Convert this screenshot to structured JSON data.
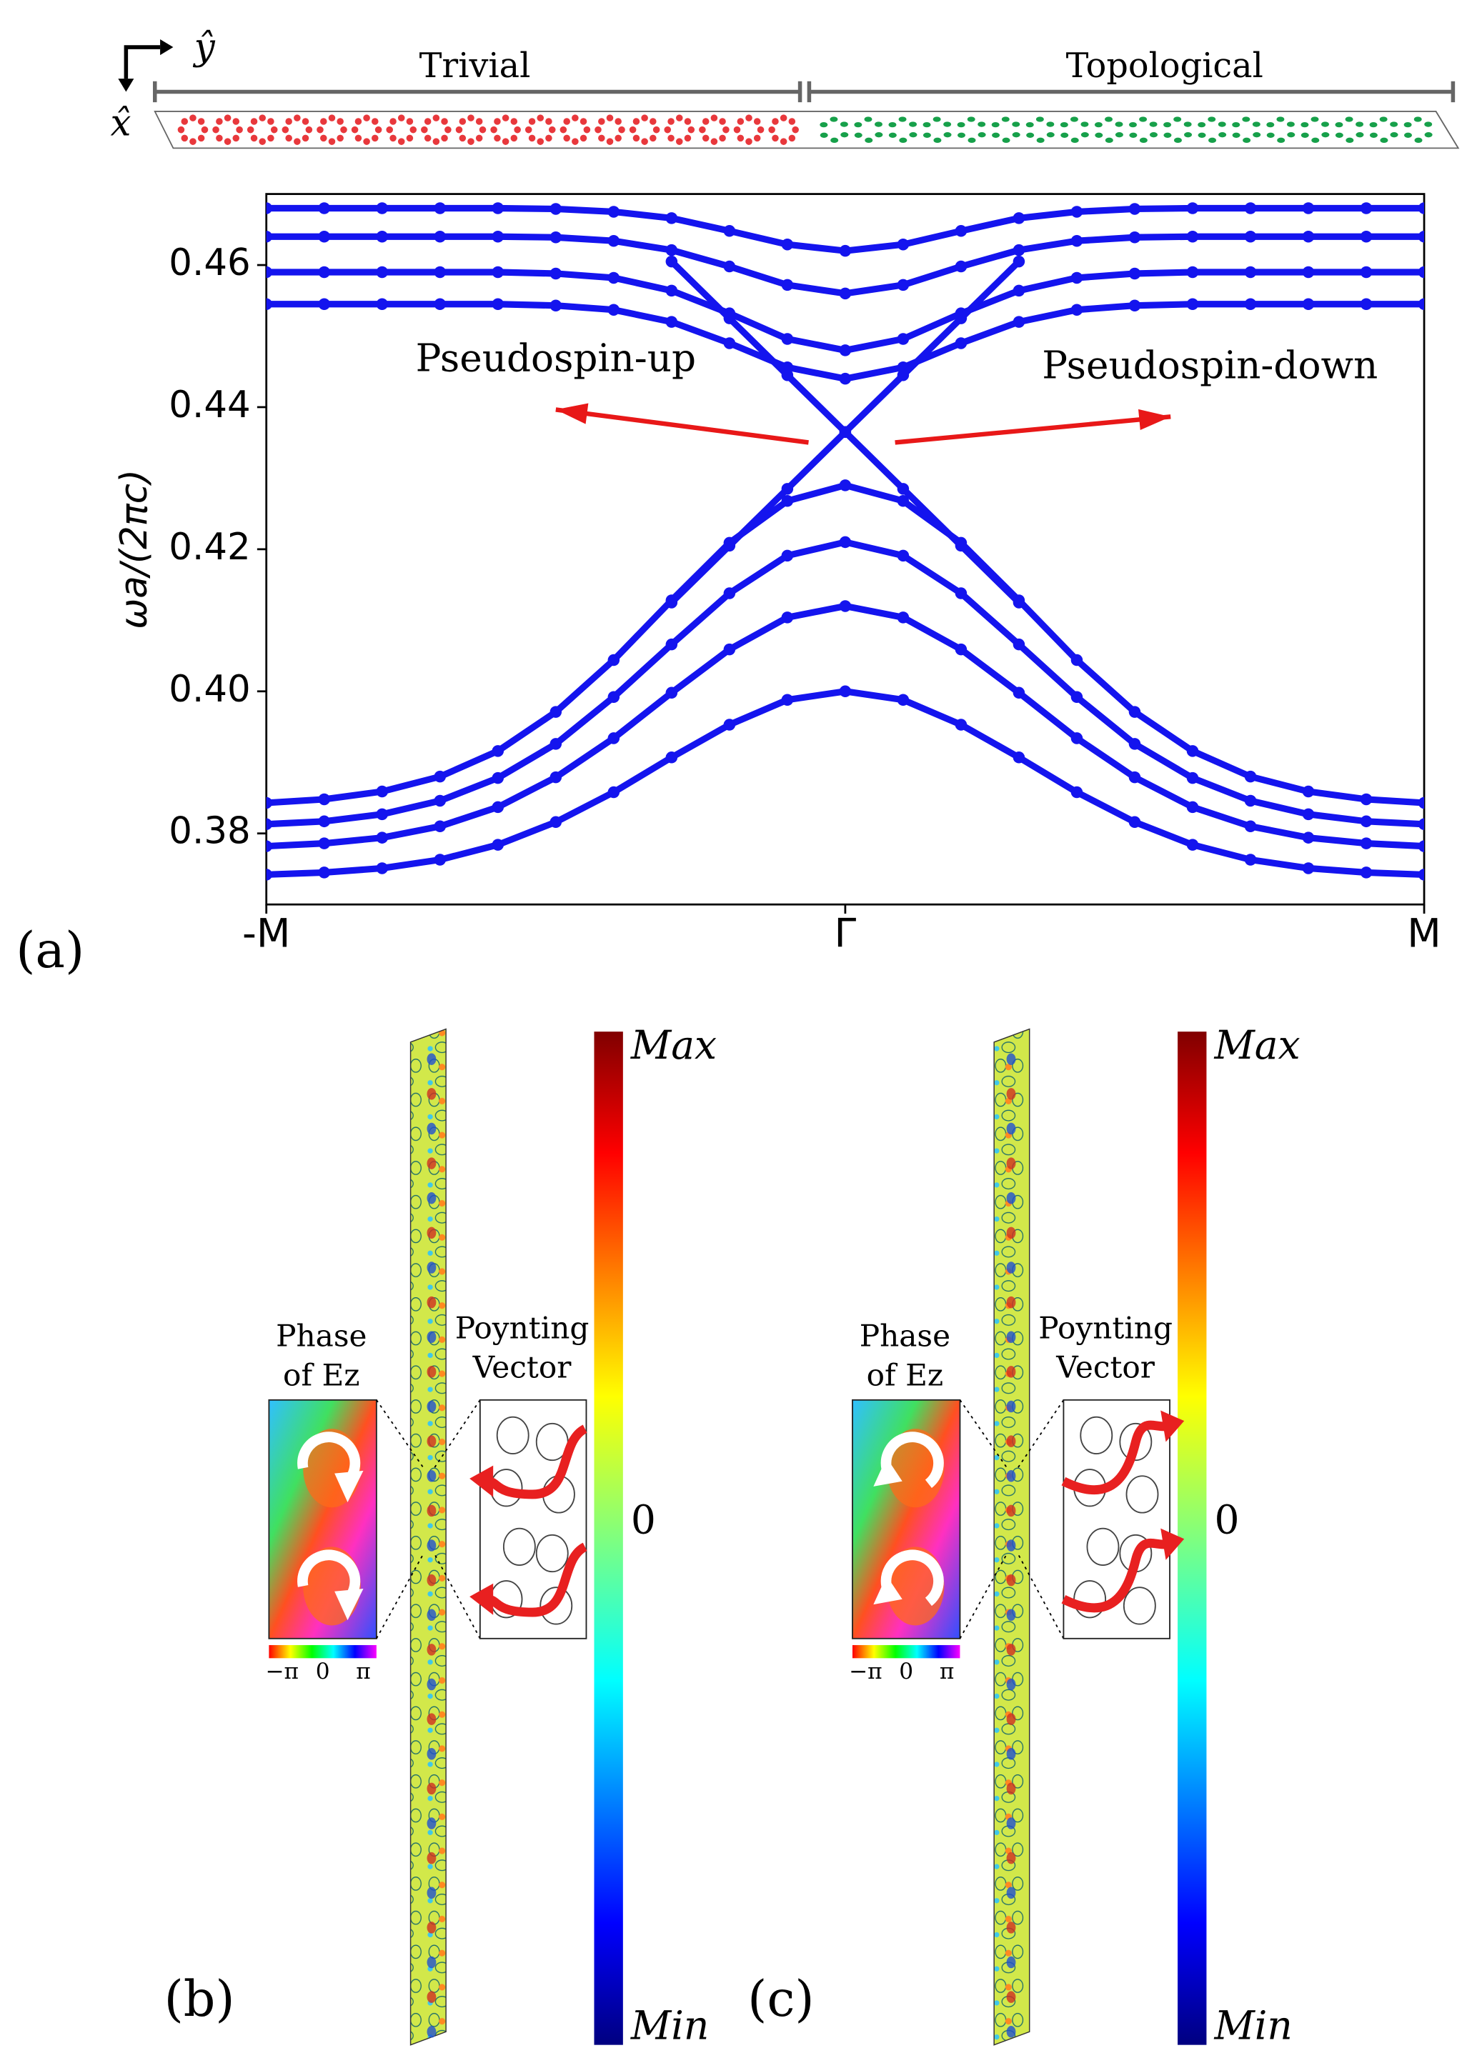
{
  "chart_data": {
    "type": "scatter",
    "ylabel": "ωa/(2πc)",
    "xlim": [
      -1,
      1
    ],
    "xticks": [
      {
        "value": -1,
        "label": "-M"
      },
      {
        "value": 0,
        "label": "Γ"
      },
      {
        "value": 1,
        "label": "M"
      }
    ],
    "ylim": [
      0.37,
      0.47
    ],
    "yticks": [
      0.38,
      {
        "value": 0.4,
        "label": "0.40"
      },
      0.42,
      0.44,
      0.46
    ],
    "color": "#1414ee",
    "annotations": [
      {
        "text": "Pseudospin-up",
        "x": -0.5,
        "y": 0.4415
      },
      {
        "text": "Pseudospin-down",
        "x": 0.63,
        "y": 0.4405
      }
    ],
    "panel_label": "(a)",
    "series": [
      {
        "x": [
          -1,
          -0.9,
          -0.8,
          -0.7,
          -0.6,
          -0.5,
          -0.4,
          -0.3,
          -0.2,
          -0.1,
          0,
          0.1,
          0.2,
          0.3,
          0.4,
          0.5,
          0.6,
          0.7,
          0.8,
          0.9,
          1
        ],
        "values": [
          0.3843,
          0.3848,
          0.3859,
          0.388,
          0.3916,
          0.3971,
          0.4044,
          0.4128,
          0.4209,
          0.4268,
          0.429,
          0.4268,
          0.4209,
          0.4128,
          0.4044,
          0.3971,
          0.3916,
          0.388,
          0.3859,
          0.3848,
          0.3843
        ]
      },
      {
        "x": [
          -1,
          -0.9,
          -0.8,
          -0.7,
          -0.6,
          -0.5,
          -0.4,
          -0.3,
          -0.2,
          -0.1,
          0,
          0.1,
          0.2,
          0.3,
          0.4,
          0.5,
          0.6,
          0.7,
          0.8,
          0.9,
          1
        ],
        "values": [
          0.3813,
          0.3817,
          0.3827,
          0.3846,
          0.3878,
          0.3926,
          0.3992,
          0.4066,
          0.4138,
          0.4191,
          0.421,
          0.4191,
          0.4138,
          0.4066,
          0.3992,
          0.3926,
          0.3878,
          0.3846,
          0.3827,
          0.3817,
          0.3813
        ]
      },
      {
        "x": [
          -1,
          -0.9,
          -0.8,
          -0.7,
          -0.6,
          -0.5,
          -0.4,
          -0.3,
          -0.2,
          -0.1,
          0,
          0.1,
          0.2,
          0.3,
          0.4,
          0.5,
          0.6,
          0.7,
          0.8,
          0.9,
          1
        ],
        "values": [
          0.3782,
          0.3786,
          0.3794,
          0.381,
          0.3837,
          0.3879,
          0.3934,
          0.3998,
          0.4059,
          0.4104,
          0.412,
          0.4104,
          0.4059,
          0.3998,
          0.3934,
          0.3879,
          0.3837,
          0.381,
          0.3794,
          0.3786,
          0.3782
        ]
      },
      {
        "x": [
          -1,
          -0.9,
          -0.8,
          -0.7,
          -0.6,
          -0.5,
          -0.4,
          -0.3,
          -0.2,
          -0.1,
          0,
          0.1,
          0.2,
          0.3,
          0.4,
          0.5,
          0.6,
          0.7,
          0.8,
          0.9,
          1
        ],
        "values": [
          0.3742,
          0.3745,
          0.3751,
          0.3763,
          0.3784,
          0.3816,
          0.3858,
          0.3907,
          0.3953,
          0.3988,
          0.4,
          0.3988,
          0.3953,
          0.3907,
          0.3858,
          0.3816,
          0.3784,
          0.3763,
          0.3751,
          0.3745,
          0.3742
        ]
      },
      {
        "x": [
          -1,
          -0.9,
          -0.8,
          -0.7,
          -0.6,
          -0.5,
          -0.4,
          -0.3,
          -0.2,
          -0.1,
          0,
          0.1,
          0.2,
          0.3,
          0.4,
          0.5,
          0.6,
          0.7,
          0.8,
          0.9,
          1
        ],
        "values": [
          0.4545,
          0.4545,
          0.4545,
          0.4545,
          0.4545,
          0.4543,
          0.4537,
          0.452,
          0.449,
          0.4456,
          0.444,
          0.4456,
          0.449,
          0.452,
          0.4537,
          0.4543,
          0.4545,
          0.4545,
          0.4545,
          0.4545,
          0.4545
        ]
      },
      {
        "x": [
          -1,
          -0.9,
          -0.8,
          -0.7,
          -0.6,
          -0.5,
          -0.4,
          -0.3,
          -0.2,
          -0.1,
          0,
          0.1,
          0.2,
          0.3,
          0.4,
          0.5,
          0.6,
          0.7,
          0.8,
          0.9,
          1
        ],
        "values": [
          0.459,
          0.459,
          0.459,
          0.459,
          0.459,
          0.4588,
          0.4582,
          0.4564,
          0.4532,
          0.4496,
          0.448,
          0.4496,
          0.4532,
          0.4564,
          0.4582,
          0.4588,
          0.459,
          0.459,
          0.459,
          0.459,
          0.459
        ]
      },
      {
        "x": [
          -1,
          -0.9,
          -0.8,
          -0.7,
          -0.6,
          -0.5,
          -0.4,
          -0.3,
          -0.2,
          -0.1,
          0,
          0.1,
          0.2,
          0.3,
          0.4,
          0.5,
          0.6,
          0.7,
          0.8,
          0.9,
          1
        ],
        "values": [
          0.464,
          0.464,
          0.464,
          0.464,
          0.464,
          0.4639,
          0.4634,
          0.4621,
          0.4598,
          0.4572,
          0.456,
          0.4572,
          0.4598,
          0.4621,
          0.4634,
          0.4639,
          0.464,
          0.464,
          0.464,
          0.464,
          0.464
        ]
      },
      {
        "x": [
          -1,
          -0.9,
          -0.8,
          -0.7,
          -0.6,
          -0.5,
          -0.4,
          -0.3,
          -0.2,
          -0.1,
          0,
          0.1,
          0.2,
          0.3,
          0.4,
          0.5,
          0.6,
          0.7,
          0.8,
          0.9,
          1
        ],
        "values": [
          0.468,
          0.468,
          0.468,
          0.468,
          0.468,
          0.4679,
          0.4675,
          0.4666,
          0.4648,
          0.4629,
          0.462,
          0.4629,
          0.4648,
          0.4666,
          0.4675,
          0.4679,
          0.468,
          0.468,
          0.468,
          0.468,
          0.468
        ]
      },
      {
        "x": [
          -0.3,
          -0.2,
          -0.1,
          0,
          0.1,
          0.2,
          0.3
        ],
        "values": [
          0.4605,
          0.4525,
          0.4445,
          0.4365,
          0.4285,
          0.4205,
          0.4125
        ]
      },
      {
        "x": [
          -0.3,
          -0.2,
          -0.1,
          0,
          0.1,
          0.2,
          0.3
        ],
        "values": [
          0.4125,
          0.4205,
          0.4285,
          0.4365,
          0.4445,
          0.4525,
          0.4605
        ]
      }
    ]
  },
  "strip": {
    "left": "Trivial",
    "right": "Topological",
    "axis_y": "ŷ",
    "axis_x": "x̂"
  },
  "panels": [
    {
      "label": "(b)",
      "phase_title": [
        "Phase",
        "of Ez"
      ],
      "phase_ticks": [
        "−π",
        "0",
        "π"
      ],
      "poynting_title": [
        "Poynting",
        "Vector"
      ],
      "colorbar": [
        "Max",
        "0",
        "Min"
      ]
    },
    {
      "label": "(c)",
      "phase_title": [
        "Phase",
        "of Ez"
      ],
      "phase_ticks": [
        "−π",
        "0",
        "π"
      ],
      "poynting_title": [
        "Poynting",
        "Vector"
      ],
      "colorbar": [
        "Max",
        "0",
        "Min"
      ]
    }
  ]
}
